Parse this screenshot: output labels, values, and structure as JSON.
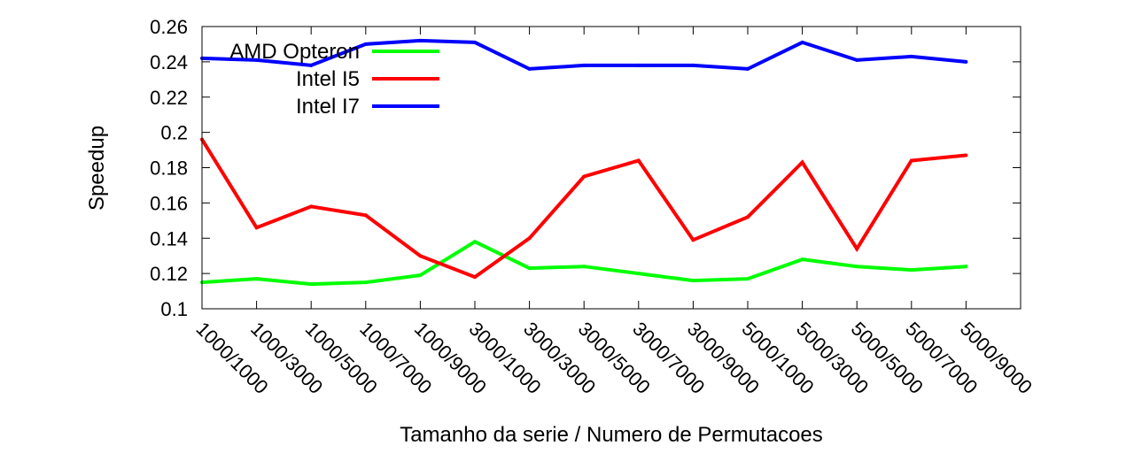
{
  "chart_data": {
    "type": "line",
    "title": "",
    "xlabel": "Tamanho da serie / Numero de Permutacoes",
    "ylabel": "Speedup",
    "ylim": [
      0.1,
      0.26
    ],
    "yticks": [
      "0.1",
      "0.12",
      "0.14",
      "0.16",
      "0.18",
      "0.2",
      "0.22",
      "0.24",
      "0.26"
    ],
    "categories": [
      "1000/1000",
      "1000/3000",
      "1000/5000",
      "1000/7000",
      "1000/9000",
      "3000/1000",
      "3000/3000",
      "3000/5000",
      "3000/7000",
      "3000/9000",
      "5000/1000",
      "5000/3000",
      "5000/5000",
      "5000/7000",
      "5000/9000"
    ],
    "legend_position": "top-left",
    "grid": false,
    "series": [
      {
        "name": "AMD Opteron",
        "color": "#00ff00",
        "values": [
          0.115,
          0.117,
          0.114,
          0.115,
          0.119,
          0.138,
          0.123,
          0.124,
          0.12,
          0.116,
          0.117,
          0.128,
          0.124,
          0.122,
          0.124
        ]
      },
      {
        "name": "Intel I5",
        "color": "#ff0000",
        "values": [
          0.196,
          0.146,
          0.158,
          0.153,
          0.13,
          0.118,
          0.14,
          0.175,
          0.184,
          0.139,
          0.152,
          0.183,
          0.134,
          0.184,
          0.187
        ]
      },
      {
        "name": "Intel I7",
        "color": "#0000ff",
        "values": [
          0.242,
          0.241,
          0.238,
          0.25,
          0.252,
          0.251,
          0.236,
          0.238,
          0.238,
          0.238,
          0.236,
          0.251,
          0.241,
          0.243,
          0.24
        ]
      }
    ]
  }
}
